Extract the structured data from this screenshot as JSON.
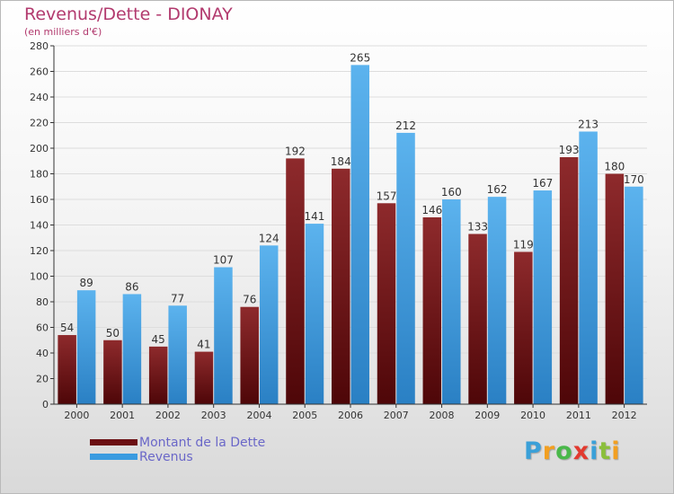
{
  "title": "Revenus/Dette - DIONAY",
  "subtitle": "(en milliers d'€)",
  "legend": [
    {
      "label": "Montant de la Dette",
      "color": "#6b0f12"
    },
    {
      "label": "Revenus",
      "color": "#3a9be0"
    }
  ],
  "logo": {
    "letters": [
      "P",
      "r",
      "o",
      "x",
      "i",
      "t",
      "i"
    ],
    "colors": [
      "#3aa0d8",
      "#f29f21",
      "#49b84a",
      "#e23a2f",
      "#3aa0d8",
      "#8bbf3c",
      "#f29f21"
    ]
  },
  "colors": {
    "debt": "#7a1a1c",
    "revenue": "#4aa5e6",
    "axis": "#333333",
    "grid": "#dddddd"
  },
  "chart_data": {
    "type": "bar",
    "categories": [
      "2000",
      "2001",
      "2002",
      "2003",
      "2004",
      "2005",
      "2006",
      "2007",
      "2008",
      "2009",
      "2010",
      "2011",
      "2012"
    ],
    "series": [
      {
        "name": "Montant de la Dette",
        "values": [
          54,
          50,
          45,
          41,
          76,
          192,
          184,
          157,
          146,
          133,
          119,
          193,
          180
        ]
      },
      {
        "name": "Revenus",
        "values": [
          89,
          86,
          77,
          107,
          124,
          141,
          265,
          212,
          160,
          162,
          167,
          213,
          170
        ]
      }
    ],
    "ylim": [
      0,
      280
    ],
    "yticks": [
      0,
      20,
      40,
      60,
      80,
      100,
      120,
      140,
      160,
      180,
      200,
      220,
      240,
      260,
      280
    ],
    "grid": true,
    "legend_position": "bottom-left"
  }
}
